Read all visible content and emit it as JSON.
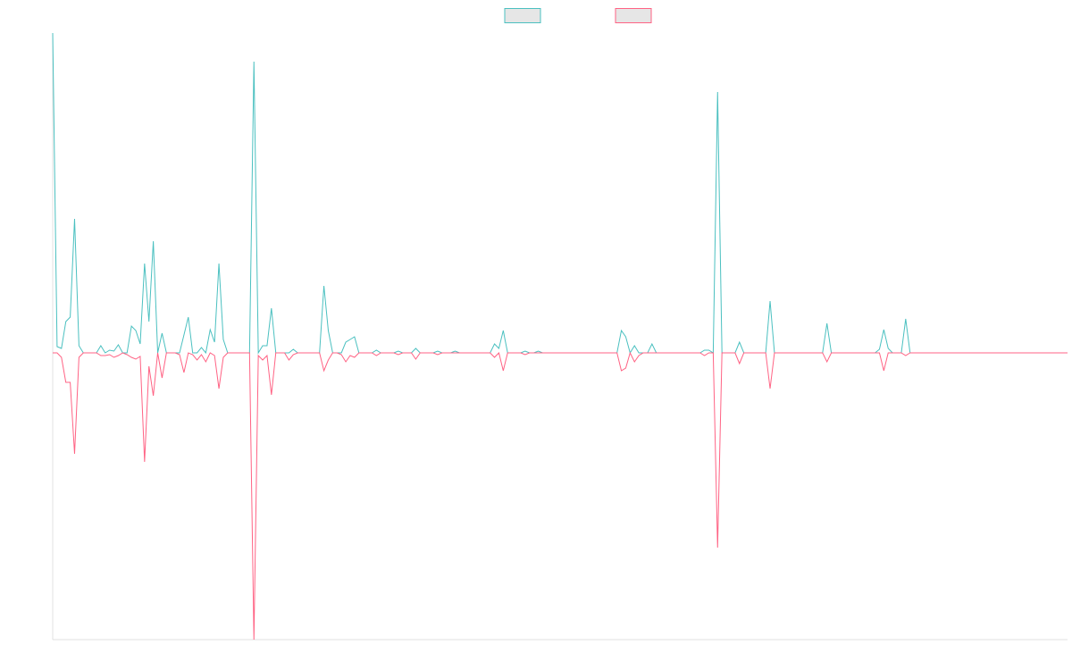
{
  "chart_data": {
    "type": "line",
    "legend": "top",
    "ylim": [
      -321,
      358
    ],
    "series": [
      {
        "color": "#4bc0c0",
        "values": [
          358,
          7,
          5,
          35,
          40,
          150,
          8,
          0,
          0,
          0,
          0,
          8,
          0,
          3,
          2,
          9,
          0,
          0,
          30,
          25,
          10,
          100,
          35,
          125,
          0,
          22,
          0,
          0,
          0,
          0,
          20,
          40,
          0,
          0,
          6,
          0,
          26,
          12,
          100,
          15,
          0,
          0,
          0,
          0,
          0,
          0,
          326,
          0,
          8,
          8,
          50,
          0,
          0,
          0,
          0,
          4,
          0,
          0,
          0,
          0,
          0,
          0,
          75,
          25,
          0,
          0,
          0,
          12,
          15,
          18,
          0,
          0,
          0,
          0,
          3,
          0,
          0,
          0,
          0,
          2,
          0,
          0,
          0,
          5,
          0,
          0,
          0,
          0,
          2,
          0,
          0,
          0,
          2,
          0,
          0,
          0,
          0,
          0,
          0,
          0,
          0,
          10,
          5,
          25,
          0,
          0,
          0,
          0,
          2,
          0,
          0,
          2,
          0,
          0,
          0,
          0,
          0,
          0,
          0,
          0,
          0,
          0,
          0,
          0,
          0,
          0,
          0,
          0,
          0,
          0,
          25,
          18,
          0,
          8,
          0,
          0,
          0,
          10,
          0,
          0,
          0,
          0,
          0,
          0,
          0,
          0,
          0,
          0,
          0,
          3,
          3,
          0,
          292,
          0,
          0,
          0,
          0,
          12,
          0,
          0,
          0,
          0,
          0,
          0,
          58,
          0,
          0,
          0,
          0,
          0,
          0,
          0,
          0,
          0,
          0,
          0,
          0,
          33,
          0,
          0,
          0,
          0,
          0,
          0,
          0,
          0,
          0,
          0,
          0,
          4,
          26,
          5,
          0,
          0,
          0,
          38,
          0,
          0,
          0,
          0,
          0,
          0,
          0,
          0,
          0,
          0,
          0,
          0,
          0,
          0,
          0,
          0,
          0,
          0,
          0,
          0,
          0,
          0,
          0,
          0,
          0,
          0,
          0,
          0,
          0,
          0,
          0,
          0,
          0,
          0,
          0,
          0,
          0
        ]
      },
      {
        "color": "#ff6384",
        "values": [
          0,
          0,
          -5,
          -33,
          -33,
          -113,
          -5,
          0,
          0,
          0,
          0,
          -3,
          -3,
          -2,
          -5,
          -3,
          0,
          -2,
          -5,
          -7,
          -4,
          -122,
          -15,
          -48,
          0,
          -28,
          0,
          0,
          0,
          -2,
          -22,
          0,
          -2,
          -8,
          -2,
          -10,
          0,
          -3,
          -40,
          -5,
          0,
          0,
          0,
          0,
          0,
          0,
          -321,
          -3,
          -8,
          -3,
          -47,
          0,
          0,
          0,
          -8,
          -2,
          0,
          0,
          0,
          0,
          0,
          0,
          -20,
          -8,
          0,
          0,
          -2,
          -10,
          -3,
          -5,
          0,
          0,
          0,
          0,
          -3,
          0,
          0,
          0,
          0,
          -2,
          0,
          0,
          0,
          -7,
          0,
          0,
          0,
          0,
          -2,
          0,
          0,
          0,
          0,
          0,
          0,
          0,
          0,
          0,
          0,
          0,
          0,
          -5,
          0,
          -20,
          0,
          0,
          0,
          0,
          -2,
          0,
          0,
          0,
          0,
          0,
          0,
          0,
          0,
          0,
          0,
          0,
          0,
          0,
          0,
          0,
          0,
          0,
          0,
          0,
          0,
          0,
          -20,
          -17,
          0,
          -10,
          -3,
          0,
          0,
          0,
          0,
          0,
          0,
          0,
          0,
          0,
          0,
          0,
          0,
          0,
          0,
          -3,
          0,
          0,
          -218,
          0,
          0,
          0,
          0,
          -12,
          0,
          0,
          0,
          0,
          0,
          0,
          -40,
          0,
          0,
          0,
          0,
          0,
          0,
          0,
          0,
          0,
          0,
          0,
          0,
          -10,
          0,
          0,
          0,
          0,
          0,
          0,
          0,
          0,
          0,
          0,
          0,
          0,
          -20,
          0,
          0,
          0,
          0,
          -3,
          0,
          0,
          0,
          0,
          0,
          0,
          0,
          0,
          0,
          0,
          0,
          0,
          0,
          0,
          0,
          0,
          0,
          0,
          0,
          0,
          0,
          0,
          0,
          0,
          0,
          0,
          0,
          0,
          0,
          0,
          0,
          0,
          0,
          0,
          0,
          0,
          0
        ]
      }
    ]
  }
}
